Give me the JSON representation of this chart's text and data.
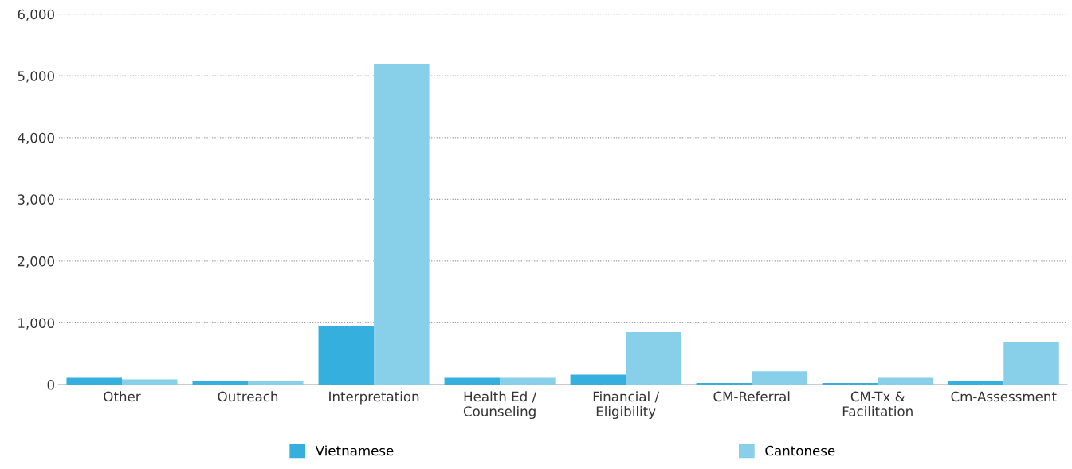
{
  "chart_data": {
    "type": "bar",
    "categories": [
      "Other",
      "Outreach",
      "Interpretation",
      "Health Ed /\nCounseling",
      "Financial /\nEligibility",
      "CM-Referral",
      "CM-Tx &\nFacilitation",
      "Cm-Assessment"
    ],
    "series": [
      {
        "name": "Vietnamese",
        "color": "#35b0de",
        "values": [
          110,
          50,
          940,
          110,
          160,
          25,
          25,
          50
        ]
      },
      {
        "name": "Cantonese",
        "color": "#88d0e9",
        "values": [
          85,
          50,
          5190,
          110,
          850,
          215,
          110,
          690
        ]
      }
    ],
    "ylim": [
      0,
      6000
    ],
    "yticks": [
      {
        "value": 0,
        "label": "0"
      },
      {
        "value": 1000,
        "label": "1,000"
      },
      {
        "value": 2000,
        "label": "2,000"
      },
      {
        "value": 3000,
        "label": "3,000"
      },
      {
        "value": 4000,
        "label": "4,000"
      },
      {
        "value": 5000,
        "label": "5,000"
      },
      {
        "value": 6000,
        "label": "6,000"
      }
    ],
    "grid": "y",
    "legend": "bottom"
  }
}
